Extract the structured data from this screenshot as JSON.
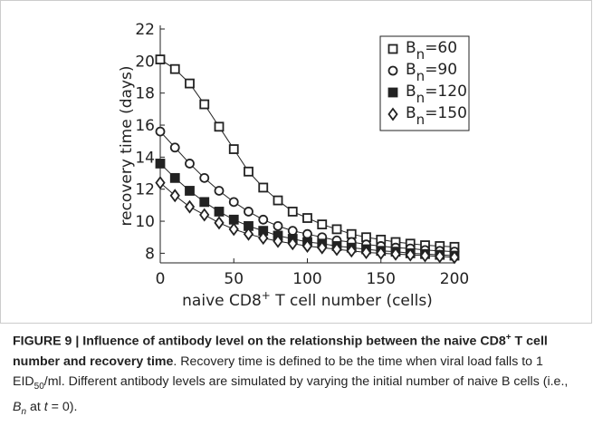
{
  "chart_data": {
    "type": "line",
    "xlabel": [
      "naive CD8",
      "+",
      " T cell number (cells)"
    ],
    "ylabel": "recovery time (days)",
    "x": [
      0,
      10,
      20,
      30,
      40,
      50,
      60,
      70,
      80,
      90,
      100,
      110,
      120,
      130,
      140,
      150,
      160,
      170,
      180,
      190,
      200
    ],
    "series": [
      {
        "name": [
          "B",
          "n",
          "=60"
        ],
        "marker": "square",
        "color": "#222222",
        "values": [
          20.1,
          19.5,
          18.6,
          17.3,
          15.9,
          14.5,
          13.1,
          12.1,
          11.3,
          10.6,
          10.2,
          9.8,
          9.5,
          9.2,
          9.0,
          8.85,
          8.7,
          8.6,
          8.5,
          8.45,
          8.4
        ]
      },
      {
        "name": [
          "B",
          "n",
          "=90"
        ],
        "marker": "circle",
        "color": "#222222",
        "values": [
          15.6,
          14.6,
          13.6,
          12.7,
          11.9,
          11.2,
          10.6,
          10.1,
          9.7,
          9.4,
          9.2,
          9.0,
          8.8,
          8.7,
          8.55,
          8.45,
          8.35,
          8.3,
          8.2,
          8.15,
          8.1
        ]
      },
      {
        "name": [
          "B",
          "n",
          "=120"
        ],
        "marker": "filled-square",
        "color": "#222222",
        "values": [
          13.6,
          12.7,
          11.9,
          11.2,
          10.6,
          10.1,
          9.7,
          9.4,
          9.1,
          8.9,
          8.7,
          8.6,
          8.45,
          8.35,
          8.25,
          8.15,
          8.1,
          8.0,
          7.95,
          7.9,
          7.85
        ]
      },
      {
        "name": [
          "B",
          "n",
          "=150"
        ],
        "marker": "diamond",
        "color": "#222222",
        "values": [
          12.4,
          11.6,
          10.9,
          10.4,
          9.9,
          9.5,
          9.2,
          8.95,
          8.75,
          8.6,
          8.45,
          8.35,
          8.25,
          8.15,
          8.05,
          8.0,
          7.95,
          7.9,
          7.85,
          7.8,
          7.75
        ]
      }
    ],
    "xlim": [
      0,
      200
    ],
    "xticks": [
      0,
      50,
      100,
      150,
      200
    ],
    "ylim": [
      7.4,
      22
    ],
    "yticks": [
      8,
      10,
      12,
      14,
      16,
      18,
      20,
      22
    ],
    "legend": "upper-right"
  },
  "caption": [
    {
      "text": "FIGURE 9 | Influence of antibody level on the relationship between the naive CD8",
      "style": "b"
    },
    {
      "text": "+",
      "style": "b sup"
    },
    {
      "text": " T cell number and recovery time",
      "style": "b"
    },
    {
      "text": ". Recovery time is defined to be the time when viral load falls to 1 EID",
      "style": ""
    },
    {
      "text": "50",
      "style": "sub"
    },
    {
      "text": "/ml. Different antibody levels are simulated by varying the initial number of naive B cells (i.e., ",
      "style": ""
    },
    {
      "text": "B",
      "style": "i"
    },
    {
      "text": "n",
      "style": "i sub"
    },
    {
      "text": " at ",
      "style": ""
    },
    {
      "text": "t",
      "style": "i"
    },
    {
      "text": " = 0).",
      "style": ""
    }
  ]
}
